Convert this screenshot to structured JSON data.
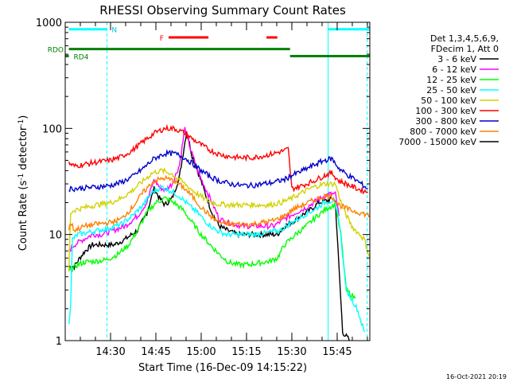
{
  "chart_data": {
    "type": "line",
    "title": "RHESSI Observing Summary Count Rates",
    "xlabel": "Start Time (16-Dec-09 14:15:22)",
    "ylabel_prefix": "Count Rate (s",
    "ylabel_sup": "-1",
    "ylabel_mid": " detector",
    "ylabel_end": ")",
    "footer_date": "16-Oct-2021 20:19",
    "y_scale": "log",
    "ylim": [
      1,
      1000
    ],
    "xlim_minutes": [
      14.25,
      15.93
    ],
    "x_origin": "14:15:22",
    "x_units": "hours",
    "x_ticks": [
      {
        "t": 14.5,
        "label": "14:30"
      },
      {
        "t": 14.75,
        "label": "14:45"
      },
      {
        "t": 15.0,
        "label": "15:00"
      },
      {
        "t": 15.25,
        "label": "15:15"
      },
      {
        "t": 15.5,
        "label": "15:30"
      },
      {
        "t": 15.75,
        "label": "15:45"
      }
    ],
    "y_ticks": [
      {
        "v": 1,
        "label": "1"
      },
      {
        "v": 10,
        "label": "10"
      },
      {
        "v": 100,
        "label": "100"
      },
      {
        "v": 1000,
        "label": "1000"
      }
    ],
    "legend_header": [
      "Det 1,3,4,5,6,9,",
      "FDecim 1, Att 0"
    ],
    "legend_placement": "right",
    "series": [
      {
        "name": "3 - 6 keV",
        "color": "#000000",
        "points": [
          [
            14.27,
            5
          ],
          [
            14.3,
            5
          ],
          [
            14.33,
            6
          ],
          [
            14.36,
            7
          ],
          [
            14.4,
            8
          ],
          [
            14.45,
            8
          ],
          [
            14.52,
            8
          ],
          [
            14.58,
            9
          ],
          [
            14.65,
            11
          ],
          [
            14.7,
            16
          ],
          [
            14.74,
            27
          ],
          [
            14.77,
            22
          ],
          [
            14.8,
            19
          ],
          [
            14.84,
            22
          ],
          [
            14.88,
            35
          ],
          [
            14.92,
            95
          ],
          [
            14.95,
            55
          ],
          [
            14.98,
            40
          ],
          [
            15.02,
            25
          ],
          [
            15.06,
            16
          ],
          [
            15.1,
            12
          ],
          [
            15.14,
            11
          ],
          [
            15.2,
            10
          ],
          [
            15.26,
            10
          ],
          [
            15.32,
            10
          ],
          [
            15.38,
            10
          ],
          [
            15.42,
            10
          ],
          [
            15.46,
            12
          ],
          [
            15.5,
            13
          ],
          [
            15.55,
            15
          ],
          [
            15.6,
            17
          ],
          [
            15.65,
            20
          ],
          [
            15.7,
            21
          ],
          [
            15.73,
            22
          ],
          [
            15.74,
            20
          ],
          [
            15.78,
            1.2
          ],
          [
            15.82,
            1.0
          ]
        ]
      },
      {
        "name": "6 - 12 keV",
        "color": "#ff00ff",
        "points": [
          [
            14.27,
            7
          ],
          [
            14.3,
            8
          ],
          [
            14.35,
            9
          ],
          [
            14.4,
            10
          ],
          [
            14.45,
            10
          ],
          [
            14.52,
            11
          ],
          [
            14.58,
            12
          ],
          [
            14.65,
            15
          ],
          [
            14.7,
            20
          ],
          [
            14.74,
            33
          ],
          [
            14.77,
            28
          ],
          [
            14.8,
            26
          ],
          [
            14.84,
            30
          ],
          [
            14.88,
            45
          ],
          [
            14.91,
            100
          ],
          [
            14.94,
            65
          ],
          [
            14.98,
            40
          ],
          [
            15.02,
            28
          ],
          [
            15.06,
            20
          ],
          [
            15.1,
            14
          ],
          [
            15.15,
            13
          ],
          [
            15.22,
            12
          ],
          [
            15.28,
            12
          ],
          [
            15.34,
            12
          ],
          [
            15.4,
            12
          ],
          [
            15.46,
            14
          ],
          [
            15.52,
            16
          ],
          [
            15.58,
            18
          ],
          [
            15.64,
            21
          ],
          [
            15.7,
            24
          ],
          [
            15.74,
            24
          ],
          [
            15.76,
            15
          ]
        ]
      },
      {
        "name": "12 - 25 keV",
        "color": "#00ff00",
        "points": [
          [
            14.27,
            4.5
          ],
          [
            14.28,
            4.6
          ],
          [
            14.32,
            5.2
          ],
          [
            14.36,
            5.5
          ],
          [
            14.42,
            5.6
          ],
          [
            14.48,
            5.8
          ],
          [
            14.54,
            6.5
          ],
          [
            14.6,
            8
          ],
          [
            14.65,
            11
          ],
          [
            14.7,
            16
          ],
          [
            14.75,
            20
          ],
          [
            14.8,
            22
          ],
          [
            14.85,
            20
          ],
          [
            14.9,
            17
          ],
          [
            14.95,
            13
          ],
          [
            15.0,
            10
          ],
          [
            15.05,
            8
          ],
          [
            15.1,
            6.5
          ],
          [
            15.15,
            5.5
          ],
          [
            15.2,
            5.2
          ],
          [
            15.26,
            5.2
          ],
          [
            15.32,
            5.4
          ],
          [
            15.38,
            5.6
          ],
          [
            15.42,
            6
          ],
          [
            15.46,
            8
          ],
          [
            15.52,
            10
          ],
          [
            15.58,
            12
          ],
          [
            15.64,
            15
          ],
          [
            15.7,
            18
          ],
          [
            15.74,
            19
          ],
          [
            15.77,
            10
          ],
          [
            15.8,
            3
          ],
          [
            15.85,
            2.5
          ]
        ]
      },
      {
        "name": "25 - 50 keV",
        "color": "#00ffff",
        "points": [
          [
            14.27,
            1.5
          ],
          [
            14.28,
            2.2
          ],
          [
            14.29,
            9
          ],
          [
            14.32,
            10
          ],
          [
            14.38,
            10.5
          ],
          [
            14.44,
            11
          ],
          [
            14.5,
            11.5
          ],
          [
            14.56,
            12.5
          ],
          [
            14.62,
            15
          ],
          [
            14.68,
            19
          ],
          [
            14.73,
            25
          ],
          [
            14.78,
            28
          ],
          [
            14.83,
            26
          ],
          [
            14.88,
            23
          ],
          [
            14.93,
            19
          ],
          [
            14.98,
            16
          ],
          [
            15.03,
            13
          ],
          [
            15.08,
            11
          ],
          [
            15.14,
            10
          ],
          [
            15.22,
            10
          ],
          [
            15.3,
            10
          ],
          [
            15.38,
            10.5
          ],
          [
            15.44,
            11
          ],
          [
            15.5,
            13
          ],
          [
            15.56,
            15
          ],
          [
            15.62,
            17
          ],
          [
            15.68,
            20
          ],
          [
            15.73,
            21
          ],
          [
            15.76,
            14
          ],
          [
            15.8,
            3
          ],
          [
            15.86,
            2
          ],
          [
            15.9,
            1.2
          ]
        ]
      },
      {
        "name": "50 - 100 keV",
        "color": "#d2d200",
        "points": [
          [
            14.27,
            4.5
          ],
          [
            14.28,
            16
          ],
          [
            14.3,
            17
          ],
          [
            14.36,
            18
          ],
          [
            14.42,
            19
          ],
          [
            14.5,
            20
          ],
          [
            14.56,
            22
          ],
          [
            14.62,
            26
          ],
          [
            14.68,
            32
          ],
          [
            14.73,
            38
          ],
          [
            14.78,
            40
          ],
          [
            14.83,
            38
          ],
          [
            14.88,
            33
          ],
          [
            14.93,
            28
          ],
          [
            14.98,
            24
          ],
          [
            15.03,
            21
          ],
          [
            15.08,
            19.5
          ],
          [
            15.15,
            19
          ],
          [
            15.22,
            19
          ],
          [
            15.3,
            19
          ],
          [
            15.38,
            19
          ],
          [
            15.44,
            20
          ],
          [
            15.5,
            22
          ],
          [
            15.56,
            25
          ],
          [
            15.62,
            28
          ],
          [
            15.68,
            30
          ],
          [
            15.74,
            30
          ],
          [
            15.78,
            18
          ],
          [
            15.83,
            12
          ],
          [
            15.9,
            9
          ],
          [
            15.93,
            6
          ]
        ]
      },
      {
        "name": "100 - 300 keV",
        "color": "#ff0000",
        "points": [
          [
            14.27,
            47
          ],
          [
            14.3,
            44
          ],
          [
            14.36,
            46
          ],
          [
            14.42,
            48
          ],
          [
            14.5,
            50
          ],
          [
            14.56,
            54
          ],
          [
            14.62,
            62
          ],
          [
            14.68,
            75
          ],
          [
            14.74,
            90
          ],
          [
            14.8,
            100
          ],
          [
            14.85,
            100
          ],
          [
            14.9,
            92
          ],
          [
            14.95,
            80
          ],
          [
            15.0,
            70
          ],
          [
            15.05,
            62
          ],
          [
            15.1,
            57
          ],
          [
            15.16,
            54
          ],
          [
            15.22,
            53
          ],
          [
            15.28,
            53
          ],
          [
            15.34,
            55
          ],
          [
            15.4,
            58
          ],
          [
            15.46,
            62
          ],
          [
            15.48,
            64
          ],
          [
            15.5,
            27
          ],
          [
            15.56,
            29
          ],
          [
            15.62,
            32
          ],
          [
            15.68,
            36
          ],
          [
            15.72,
            38
          ],
          [
            15.76,
            32
          ],
          [
            15.8,
            30
          ],
          [
            15.86,
            27
          ],
          [
            15.92,
            25
          ]
        ]
      },
      {
        "name": "300 - 800 keV",
        "color": "#0000cc",
        "points": [
          [
            14.27,
            27
          ],
          [
            14.3,
            27
          ],
          [
            14.36,
            27.5
          ],
          [
            14.42,
            28
          ],
          [
            14.5,
            29
          ],
          [
            14.56,
            31
          ],
          [
            14.62,
            35
          ],
          [
            14.68,
            42
          ],
          [
            14.74,
            52
          ],
          [
            14.8,
            58
          ],
          [
            14.85,
            58
          ],
          [
            14.9,
            54
          ],
          [
            14.95,
            47
          ],
          [
            15.0,
            40
          ],
          [
            15.05,
            35
          ],
          [
            15.1,
            32
          ],
          [
            15.16,
            30
          ],
          [
            15.22,
            29
          ],
          [
            15.28,
            29
          ],
          [
            15.34,
            30
          ],
          [
            15.4,
            31
          ],
          [
            15.46,
            33
          ],
          [
            15.5,
            36
          ],
          [
            15.56,
            40
          ],
          [
            15.62,
            45
          ],
          [
            15.68,
            50
          ],
          [
            15.72,
            52
          ],
          [
            15.76,
            42
          ],
          [
            15.8,
            37
          ],
          [
            15.86,
            32
          ],
          [
            15.92,
            27
          ]
        ]
      },
      {
        "name": "800 - 7000 keV",
        "color": "#ff8000",
        "points": [
          [
            14.27,
            11
          ],
          [
            14.28,
            13
          ],
          [
            14.3,
            11
          ],
          [
            14.36,
            12
          ],
          [
            14.42,
            12.5
          ],
          [
            14.5,
            13
          ],
          [
            14.56,
            14
          ],
          [
            14.62,
            18
          ],
          [
            14.68,
            25
          ],
          [
            14.74,
            32
          ],
          [
            14.8,
            34
          ],
          [
            14.85,
            32
          ],
          [
            14.9,
            28
          ],
          [
            14.95,
            23
          ],
          [
            15.0,
            18
          ],
          [
            15.05,
            15
          ],
          [
            15.1,
            13
          ],
          [
            15.16,
            12.5
          ],
          [
            15.22,
            12.5
          ],
          [
            15.28,
            12.5
          ],
          [
            15.34,
            13
          ],
          [
            15.4,
            13.5
          ],
          [
            15.46,
            15
          ],
          [
            15.5,
            17
          ],
          [
            15.56,
            19
          ],
          [
            15.62,
            21
          ],
          [
            15.68,
            23
          ],
          [
            15.72,
            23
          ],
          [
            15.76,
            19
          ],
          [
            15.82,
            17
          ],
          [
            15.88,
            16
          ],
          [
            15.93,
            15
          ]
        ]
      }
    ],
    "extra_legend_entries": [
      {
        "name": "7000 - 15000 keV",
        "color": "#000000"
      }
    ],
    "flag_bars": [
      {
        "label": "N",
        "color": "#00ffff",
        "y": 860,
        "ranges": [
          [
            14.27,
            14.48
          ],
          [
            15.7,
            15.93
          ]
        ]
      },
      {
        "label": "F",
        "color": "#ff0000",
        "y": 720,
        "ranges": [
          [
            14.82,
            15.04
          ],
          [
            15.36,
            15.42
          ]
        ]
      },
      {
        "label": "RDO",
        "color": "#008000",
        "y": 560,
        "ranges": [
          [
            14.27,
            15.49
          ]
        ]
      },
      {
        "label": "RD4",
        "color": "#008000",
        "y": 480,
        "ranges": [
          [
            14.25,
            14.27
          ],
          [
            15.49,
            15.93
          ]
        ]
      }
    ],
    "vertical_markers": [
      {
        "t": 14.48,
        "color": "#00ffff",
        "style": "dashed"
      },
      {
        "t": 15.7,
        "color": "#00ffff",
        "style": "solid"
      },
      {
        "t": 15.915,
        "color": "#00ffff",
        "style": "dashed"
      }
    ],
    "grid": false
  }
}
